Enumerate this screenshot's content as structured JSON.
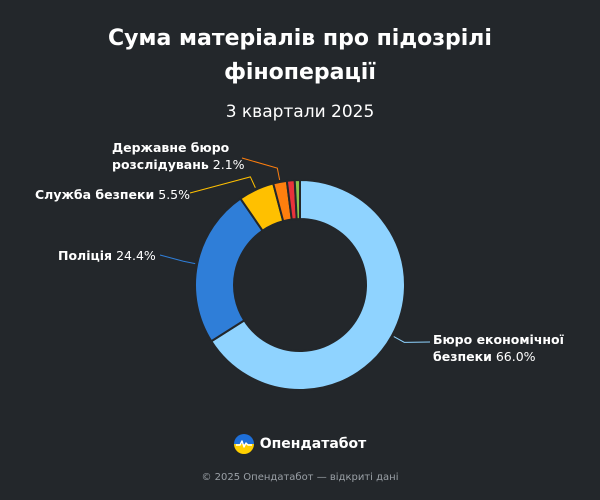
{
  "header": {
    "title_line1": "Сума матеріалів про підозрілі",
    "title_line2": "фіноперації",
    "subtitle": "3 квартали 2025"
  },
  "chart_data": {
    "type": "pie",
    "title": "Сума матеріалів про підозрілі фіноперації",
    "subtitle": "3 квартали 2025",
    "donut": true,
    "slices": [
      {
        "label": "Бюро економічної безпеки",
        "label_line1": "Бюро економічної",
        "label_line2": "безпеки",
        "value": 66.0,
        "display": "66.0%",
        "color": "#8fd3ff"
      },
      {
        "label": "Поліція",
        "value": 24.4,
        "display": "24.4%",
        "color": "#2f7ed8"
      },
      {
        "label": "Служба безпеки",
        "value": 5.5,
        "display": "5.5%",
        "color": "#ffc000"
      },
      {
        "label": "Державне бюро розслідувань",
        "label_line1": "Державне бюро",
        "label_line2": "розслідувань",
        "value": 2.1,
        "display": "2.1%",
        "color": "#ff7f0e"
      },
      {
        "label": "",
        "value": 1.2,
        "color": "#e8333a"
      },
      {
        "label": "",
        "value": 0.8,
        "color": "#8bc34a"
      }
    ]
  },
  "brand": {
    "name": "Опендатабот",
    "logo_icon": "opendatabot-logo-icon"
  },
  "footer": {
    "text": "© 2025 Опендатабот — відкриті дані"
  }
}
